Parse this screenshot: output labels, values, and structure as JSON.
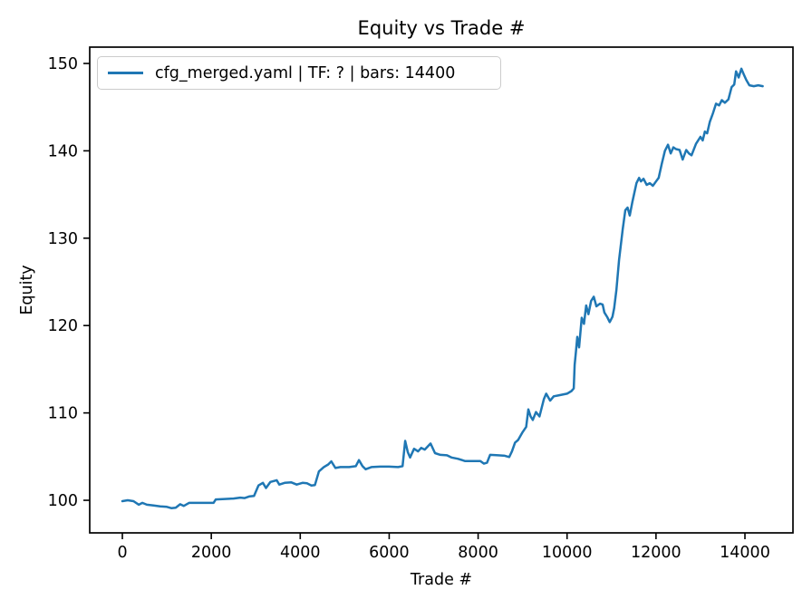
{
  "chart_data": {
    "type": "line",
    "title": "Equity vs Trade #",
    "xlabel": "Trade #",
    "ylabel": "Equity",
    "xlim": [
      -734,
      15080
    ],
    "ylim": [
      96.27,
      151.87
    ],
    "xticks": [
      0,
      2000,
      4000,
      6000,
      8000,
      10000,
      12000,
      14000
    ],
    "yticks": [
      100,
      110,
      120,
      130,
      140,
      150
    ],
    "grid": false,
    "legend_position": "upper left",
    "frame_color": "#000000",
    "series": [
      {
        "name": "cfg_merged.yaml | TF: ? | bars: 14400",
        "color": "#1f77b4",
        "x": [
          0,
          120,
          250,
          370,
          450,
          550,
          700,
          850,
          1000,
          1100,
          1200,
          1300,
          1380,
          1500,
          1700,
          1900,
          2050,
          2100,
          2300,
          2500,
          2650,
          2750,
          2860,
          2960,
          3060,
          3160,
          3230,
          3330,
          3470,
          3530,
          3650,
          3800,
          3920,
          4050,
          4150,
          4250,
          4330,
          4420,
          4530,
          4630,
          4700,
          4790,
          4900,
          5100,
          5250,
          5320,
          5400,
          5470,
          5600,
          5800,
          6000,
          6200,
          6300,
          6360,
          6420,
          6470,
          6560,
          6650,
          6720,
          6800,
          6930,
          7030,
          7150,
          7300,
          7400,
          7550,
          7700,
          7900,
          8050,
          8130,
          8200,
          8270,
          8450,
          8600,
          8700,
          8760,
          8830,
          8900,
          9000,
          9080,
          9130,
          9180,
          9230,
          9300,
          9380,
          9480,
          9530,
          9620,
          9700,
          9800,
          9900,
          10000,
          10100,
          10150,
          10170,
          10200,
          10230,
          10270,
          10330,
          10380,
          10430,
          10480,
          10540,
          10600,
          10660,
          10740,
          10800,
          10840,
          10900,
          10960,
          11020,
          11060,
          11110,
          11170,
          11250,
          11310,
          11360,
          11410,
          11470,
          11560,
          11620,
          11660,
          11720,
          11790,
          11860,
          11930,
          12000,
          12060,
          12130,
          12200,
          12270,
          12330,
          12390,
          12450,
          12530,
          12600,
          12680,
          12740,
          12800,
          12900,
          13000,
          13050,
          13100,
          13150,
          13210,
          13280,
          13350,
          13420,
          13480,
          13550,
          13630,
          13700,
          13760,
          13800,
          13860,
          13920,
          13970,
          14030,
          14100,
          14200,
          14300,
          14400
        ],
        "y": [
          99.9,
          100.0,
          99.9,
          99.5,
          99.7,
          99.5,
          99.4,
          99.3,
          99.25,
          99.1,
          99.15,
          99.55,
          99.35,
          99.7,
          99.7,
          99.7,
          99.7,
          100.1,
          100.15,
          100.2,
          100.3,
          100.25,
          100.45,
          100.5,
          101.7,
          102.0,
          101.4,
          102.1,
          102.3,
          101.8,
          102.0,
          102.05,
          101.8,
          102.0,
          101.95,
          101.7,
          101.75,
          103.3,
          103.8,
          104.1,
          104.45,
          103.7,
          103.8,
          103.8,
          103.9,
          104.6,
          103.9,
          103.55,
          103.8,
          103.85,
          103.85,
          103.8,
          103.9,
          106.8,
          105.5,
          104.9,
          105.9,
          105.6,
          106.0,
          105.8,
          106.5,
          105.4,
          105.2,
          105.15,
          104.9,
          104.75,
          104.5,
          104.5,
          104.5,
          104.2,
          104.3,
          105.2,
          105.15,
          105.1,
          104.95,
          105.6,
          106.6,
          106.9,
          107.8,
          108.4,
          110.4,
          109.6,
          109.2,
          110.1,
          109.6,
          111.6,
          112.2,
          111.4,
          111.9,
          112.0,
          112.1,
          112.2,
          112.5,
          112.8,
          115.5,
          117.0,
          118.7,
          117.5,
          120.9,
          120.2,
          122.3,
          121.3,
          122.8,
          123.3,
          122.2,
          122.5,
          122.4,
          121.5,
          121.0,
          120.4,
          121.0,
          122.0,
          124.1,
          127.5,
          131.0,
          133.2,
          133.5,
          132.6,
          134.2,
          136.3,
          136.9,
          136.5,
          136.8,
          136.1,
          136.3,
          136.0,
          136.5,
          136.9,
          138.5,
          140.0,
          140.7,
          139.7,
          140.4,
          140.2,
          140.1,
          139.0,
          140.1,
          139.7,
          139.5,
          140.8,
          141.6,
          141.2,
          142.2,
          142.0,
          143.3,
          144.3,
          145.4,
          145.2,
          145.8,
          145.5,
          145.9,
          147.3,
          147.6,
          149.1,
          148.4,
          149.4,
          148.8,
          148.1,
          147.5,
          147.4,
          147.5,
          147.4
        ]
      }
    ]
  }
}
